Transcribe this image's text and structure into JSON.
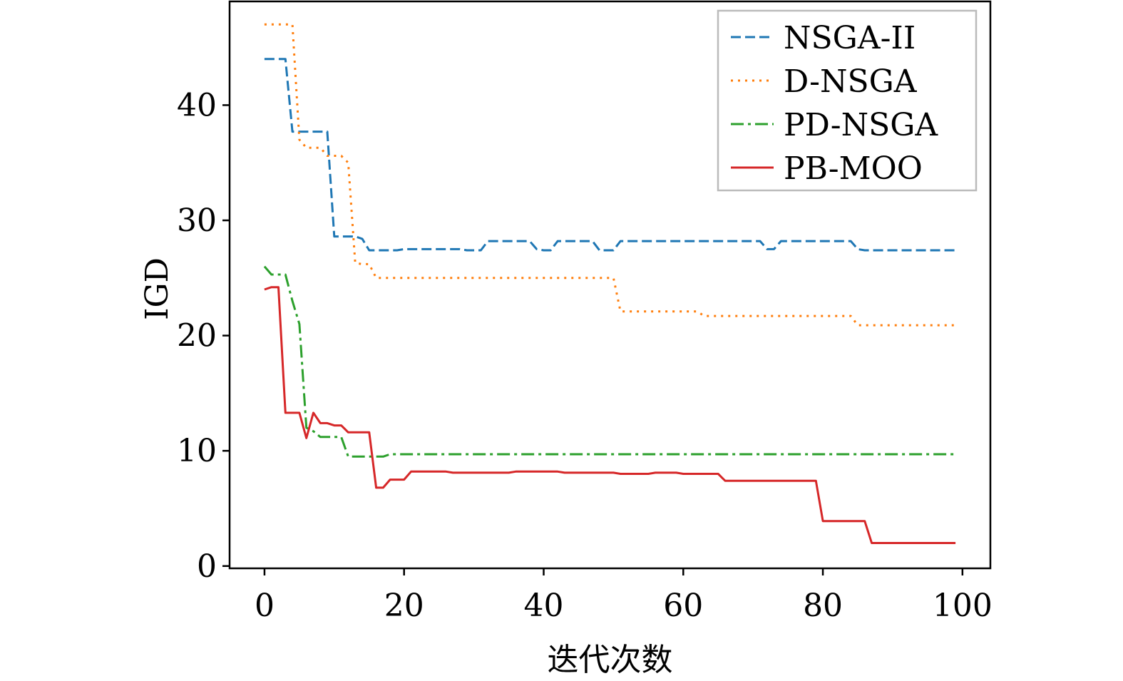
{
  "chart_data": {
    "type": "line",
    "title": "",
    "xlabel": "迭代次数",
    "ylabel": "IGD",
    "xlim": [
      -5,
      104
    ],
    "ylim": [
      -0.2,
      49
    ],
    "xticks": [
      0,
      20,
      40,
      60,
      80,
      100
    ],
    "yticks": [
      0,
      10,
      20,
      30,
      40
    ],
    "grid": false,
    "legend_position": "upper right",
    "series": [
      {
        "name": "NSGA-II",
        "color": "#1f77b4",
        "linestyle": "dashed",
        "x": [
          0,
          1,
          2,
          3,
          4,
          5,
          6,
          7,
          8,
          9,
          10,
          11,
          12,
          13,
          14,
          15,
          16,
          17,
          18,
          19,
          20,
          21,
          22,
          23,
          24,
          25,
          26,
          27,
          28,
          29,
          30,
          31,
          32,
          33,
          34,
          35,
          36,
          37,
          38,
          39,
          40,
          41,
          42,
          43,
          44,
          45,
          46,
          47,
          48,
          49,
          50,
          51,
          52,
          53,
          54,
          55,
          56,
          57,
          58,
          59,
          60,
          61,
          62,
          63,
          64,
          65,
          66,
          67,
          68,
          69,
          70,
          71,
          72,
          73,
          74,
          75,
          76,
          77,
          78,
          79,
          80,
          81,
          82,
          83,
          84,
          85,
          86,
          87,
          88,
          89,
          90,
          91,
          92,
          93,
          94,
          95,
          96,
          97,
          98,
          99
        ],
        "y": [
          44,
          44,
          44,
          44,
          37.7,
          37.7,
          37.7,
          37.7,
          37.7,
          37.7,
          28.6,
          28.6,
          28.6,
          28.6,
          28.4,
          27.4,
          27.4,
          27.4,
          27.4,
          27.4,
          27.5,
          27.5,
          27.5,
          27.5,
          27.5,
          27.5,
          27.5,
          27.5,
          27.5,
          27.4,
          27.4,
          27.4,
          28.2,
          28.2,
          28.2,
          28.2,
          28.2,
          28.2,
          28.2,
          27.5,
          27.4,
          27.4,
          28.2,
          28.2,
          28.2,
          28.2,
          28.2,
          28.2,
          27.4,
          27.4,
          27.4,
          28.2,
          28.2,
          28.2,
          28.2,
          28.2,
          28.2,
          28.2,
          28.2,
          28.2,
          28.2,
          28.2,
          28.2,
          28.2,
          28.2,
          28.2,
          28.2,
          28.2,
          28.2,
          28.2,
          28.2,
          28.2,
          27.5,
          27.5,
          28.2,
          28.2,
          28.2,
          28.2,
          28.2,
          28.2,
          28.2,
          28.2,
          28.2,
          28.2,
          28.2,
          27.5,
          27.4,
          27.4,
          27.4,
          27.4,
          27.4,
          27.4,
          27.4,
          27.4,
          27.4,
          27.4,
          27.4,
          27.4,
          27.4,
          27.4
        ]
      },
      {
        "name": "D-NSGA",
        "color": "#ff7f0e",
        "linestyle": "dotted",
        "x": [
          0,
          1,
          2,
          3,
          4,
          5,
          6,
          7,
          8,
          9,
          10,
          11,
          12,
          13,
          14,
          15,
          16,
          17,
          18,
          19,
          20,
          21,
          22,
          23,
          24,
          25,
          26,
          27,
          28,
          29,
          30,
          31,
          32,
          33,
          34,
          35,
          36,
          37,
          38,
          39,
          40,
          41,
          42,
          43,
          44,
          45,
          46,
          47,
          48,
          49,
          50,
          51,
          52,
          53,
          54,
          55,
          56,
          57,
          58,
          59,
          60,
          61,
          62,
          63,
          64,
          65,
          66,
          67,
          68,
          69,
          70,
          71,
          72,
          73,
          74,
          75,
          76,
          77,
          78,
          79,
          80,
          81,
          82,
          83,
          84,
          85,
          86,
          87,
          88,
          89,
          90,
          91,
          92,
          93,
          94,
          95,
          96,
          97,
          98,
          99
        ],
        "y": [
          47,
          47,
          47,
          47,
          47,
          37,
          36.3,
          36.3,
          36.3,
          35.6,
          35.6,
          35.6,
          35,
          26.3,
          26.2,
          26.2,
          25,
          25,
          25,
          25,
          25,
          25,
          25,
          25,
          25,
          25,
          25,
          25,
          25,
          25,
          25,
          25,
          25,
          25,
          25,
          25,
          25,
          25,
          25,
          25,
          25,
          25,
          25,
          25,
          25,
          25,
          25,
          25,
          25,
          25,
          25,
          22.1,
          22.1,
          22.1,
          22.1,
          22.1,
          22.1,
          22.1,
          22.1,
          22.1,
          22.1,
          22.1,
          22.1,
          21.7,
          21.7,
          21.7,
          21.7,
          21.7,
          21.7,
          21.7,
          21.7,
          21.7,
          21.7,
          21.7,
          21.7,
          21.7,
          21.7,
          21.7,
          21.7,
          21.7,
          21.7,
          21.7,
          21.7,
          21.7,
          21.7,
          20.9,
          20.9,
          20.9,
          20.9,
          20.9,
          20.9,
          20.9,
          20.9,
          20.9,
          20.9,
          20.9,
          20.9,
          20.9,
          20.9,
          20.9
        ]
      },
      {
        "name": "PD-NSGA",
        "color": "#2ca02c",
        "linestyle": "dashdot",
        "x": [
          0,
          1,
          2,
          3,
          4,
          5,
          6,
          7,
          8,
          9,
          10,
          11,
          12,
          13,
          14,
          15,
          16,
          17,
          18,
          19,
          20,
          21,
          22,
          23,
          24,
          25,
          26,
          27,
          28,
          29,
          30,
          31,
          32,
          33,
          34,
          35,
          36,
          37,
          38,
          39,
          40,
          41,
          42,
          43,
          44,
          45,
          46,
          47,
          48,
          49,
          50,
          51,
          52,
          53,
          54,
          55,
          56,
          57,
          58,
          59,
          60,
          61,
          62,
          63,
          64,
          65,
          66,
          67,
          68,
          69,
          70,
          71,
          72,
          73,
          74,
          75,
          76,
          77,
          78,
          79,
          80,
          81,
          82,
          83,
          84,
          85,
          86,
          87,
          88,
          89,
          90,
          91,
          92,
          93,
          94,
          95,
          96,
          97,
          98,
          99
        ],
        "y": [
          26,
          25.3,
          25.3,
          25.3,
          23,
          21,
          12,
          11.7,
          11.2,
          11.2,
          11.2,
          11.2,
          9.5,
          9.5,
          9.5,
          9.5,
          9.5,
          9.5,
          9.7,
          9.7,
          9.7,
          9.7,
          9.7,
          9.7,
          9.7,
          9.7,
          9.7,
          9.7,
          9.7,
          9.7,
          9.7,
          9.7,
          9.7,
          9.7,
          9.7,
          9.7,
          9.7,
          9.7,
          9.7,
          9.7,
          9.7,
          9.7,
          9.7,
          9.7,
          9.7,
          9.7,
          9.7,
          9.7,
          9.7,
          9.7,
          9.7,
          9.7,
          9.7,
          9.7,
          9.7,
          9.7,
          9.7,
          9.7,
          9.7,
          9.7,
          9.7,
          9.7,
          9.7,
          9.7,
          9.7,
          9.7,
          9.7,
          9.7,
          9.7,
          9.7,
          9.7,
          9.7,
          9.7,
          9.7,
          9.7,
          9.7,
          9.7,
          9.7,
          9.7,
          9.7,
          9.7,
          9.7,
          9.7,
          9.7,
          9.7,
          9.7,
          9.7,
          9.7,
          9.7,
          9.7,
          9.7,
          9.7,
          9.7,
          9.7,
          9.7,
          9.7,
          9.7,
          9.7,
          9.7,
          9.7
        ]
      },
      {
        "name": "PB-MOO",
        "color": "#d62728",
        "linestyle": "solid",
        "x": [
          0,
          1,
          2,
          3,
          4,
          5,
          6,
          7,
          8,
          9,
          10,
          11,
          12,
          13,
          14,
          15,
          16,
          17,
          18,
          19,
          20,
          21,
          22,
          23,
          24,
          25,
          26,
          27,
          28,
          29,
          30,
          31,
          32,
          33,
          34,
          35,
          36,
          37,
          38,
          39,
          40,
          41,
          42,
          43,
          44,
          45,
          46,
          47,
          48,
          49,
          50,
          51,
          52,
          53,
          54,
          55,
          56,
          57,
          58,
          59,
          60,
          61,
          62,
          63,
          64,
          65,
          66,
          67,
          68,
          69,
          70,
          71,
          72,
          73,
          74,
          75,
          76,
          77,
          78,
          79,
          80,
          81,
          82,
          83,
          84,
          85,
          86,
          87,
          88,
          89,
          90,
          91,
          92,
          93,
          94,
          95,
          96,
          97,
          98,
          99
        ],
        "y": [
          24,
          24.2,
          24.2,
          13.3,
          13.3,
          13.3,
          11.1,
          13.3,
          12.4,
          12.4,
          12.2,
          12.2,
          11.6,
          11.6,
          11.6,
          11.6,
          6.8,
          6.8,
          7.5,
          7.5,
          7.5,
          8.2,
          8.2,
          8.2,
          8.2,
          8.2,
          8.2,
          8.1,
          8.1,
          8.1,
          8.1,
          8.1,
          8.1,
          8.1,
          8.1,
          8.1,
          8.2,
          8.2,
          8.2,
          8.2,
          8.2,
          8.2,
          8.2,
          8.1,
          8.1,
          8.1,
          8.1,
          8.1,
          8.1,
          8.1,
          8.1,
          8,
          8,
          8,
          8,
          8,
          8.1,
          8.1,
          8.1,
          8.1,
          8,
          8,
          8,
          8,
          8,
          8,
          7.4,
          7.4,
          7.4,
          7.4,
          7.4,
          7.4,
          7.4,
          7.4,
          7.4,
          7.4,
          7.4,
          7.4,
          7.4,
          7.4,
          3.9,
          3.9,
          3.9,
          3.9,
          3.9,
          3.9,
          3.9,
          2,
          2,
          2,
          2,
          2,
          2,
          2,
          2,
          2,
          2,
          2,
          2,
          2
        ]
      }
    ]
  }
}
